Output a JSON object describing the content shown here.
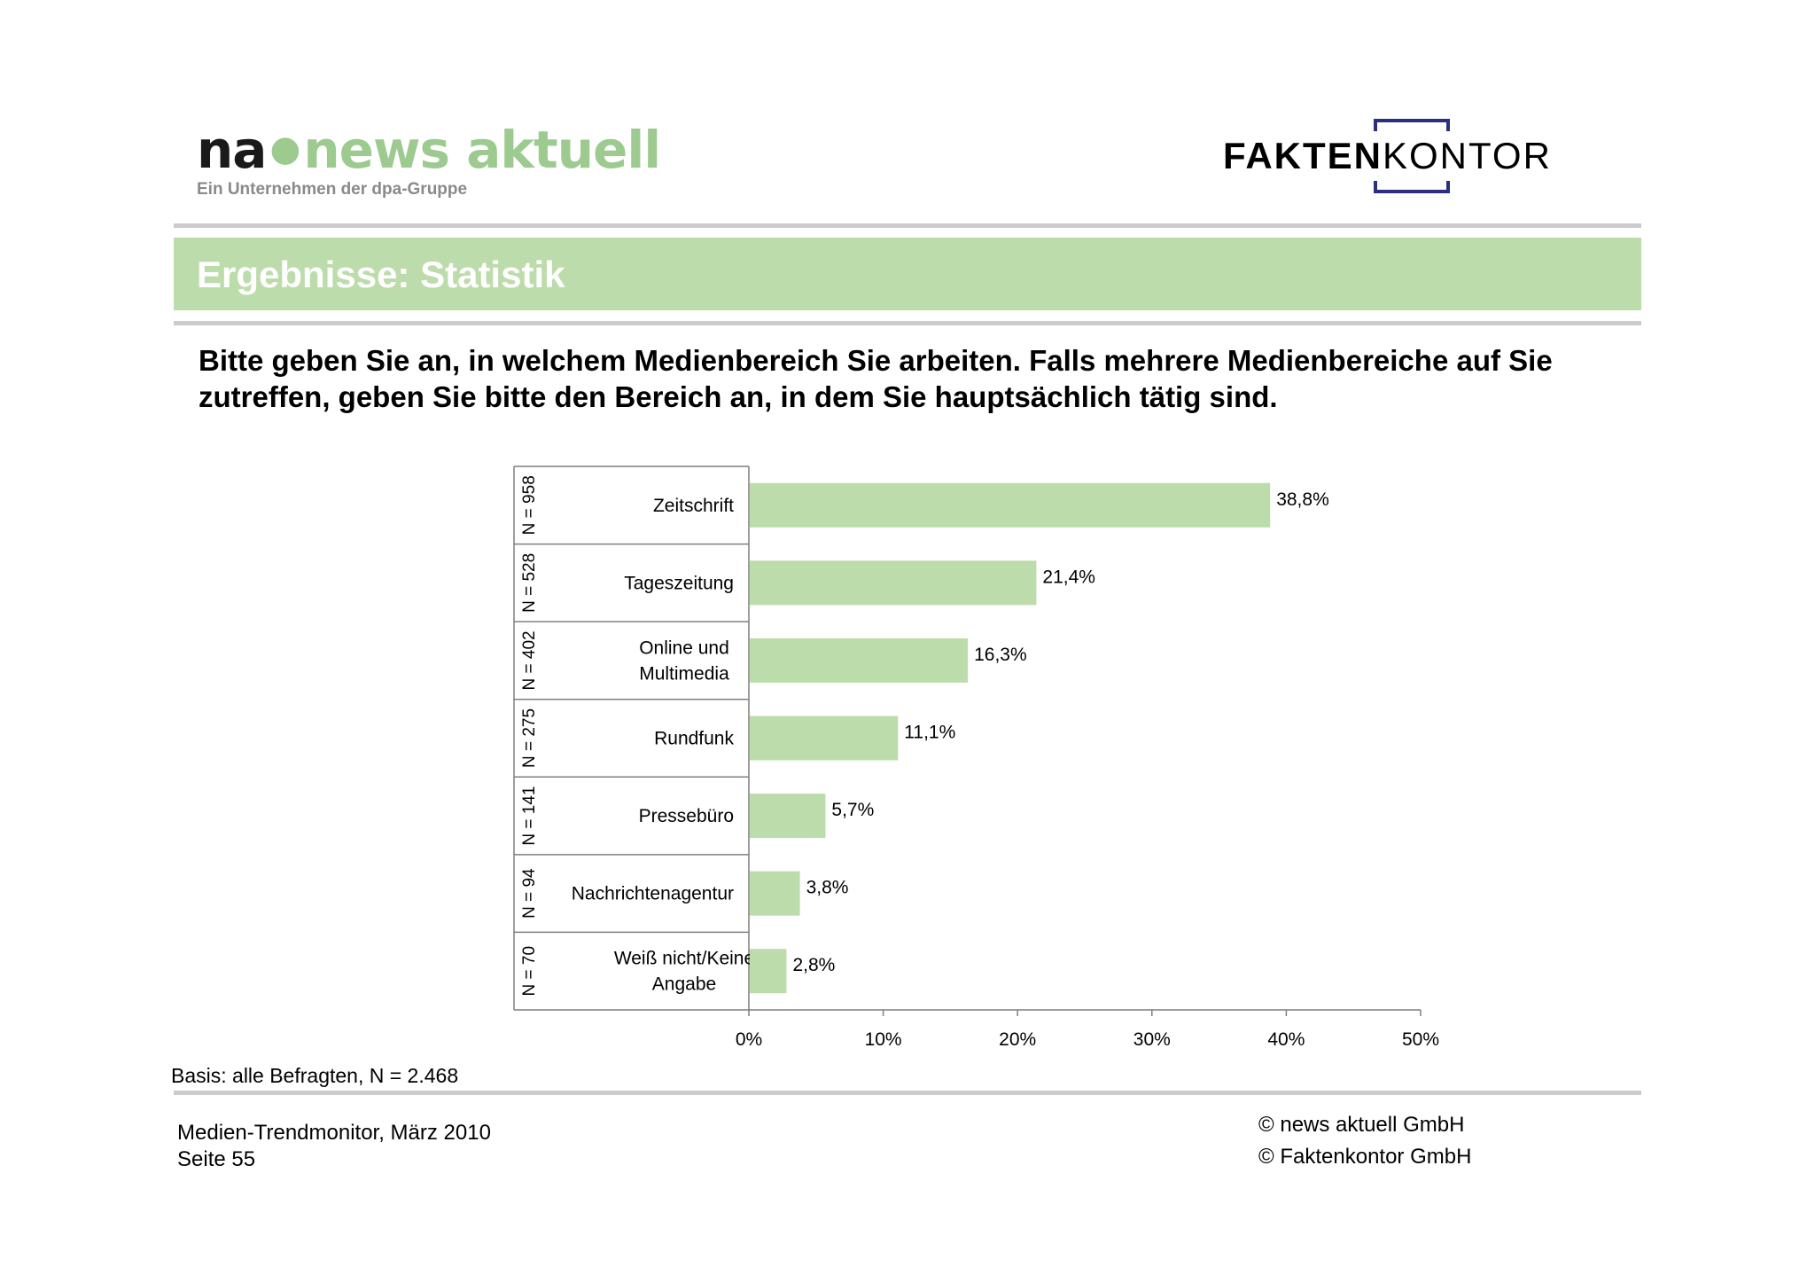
{
  "header": {
    "na_logo_prefix": "na",
    "na_logo_brand": "news aktuell",
    "na_tagline": "Ein Unternehmen der dpa-Gruppe",
    "fk_logo_bold": "FAKTEN",
    "fk_logo_regular": "KONTOR"
  },
  "title": "Ergebnisse: Statistik",
  "question": "Bitte geben Sie an, in welchem Medienbereich Sie arbeiten. Falls mehrere Medienbereiche auf Sie zutreffen, geben Sie bitte den Bereich an, in dem Sie hauptsächlich tätig sind.",
  "colors": {
    "accent_green": "#bddcab",
    "bar_green": "#bddcab",
    "logo_green": "#9dca8f",
    "logo_blue": "#2c2f80",
    "rule_gray": "#cccccc"
  },
  "chart_data": {
    "type": "bar",
    "orientation": "horizontal",
    "categories": [
      {
        "label_lines": [
          "Zeitschrift"
        ],
        "n_label": "N = 958"
      },
      {
        "label_lines": [
          "Tageszeitung"
        ],
        "n_label": "N = 528"
      },
      {
        "label_lines": [
          "Online und",
          "Multimedia"
        ],
        "n_label": "N = 402"
      },
      {
        "label_lines": [
          "Rundfunk"
        ],
        "n_label": "N = 275"
      },
      {
        "label_lines": [
          "Pressebüro"
        ],
        "n_label": "N = 141"
      },
      {
        "label_lines": [
          "Nachrichtenagentur"
        ],
        "n_label": "N = 94"
      },
      {
        "label_lines": [
          "Weiß nicht/Keine",
          "Angabe"
        ],
        "n_label": "N = 70"
      }
    ],
    "values": [
      38.8,
      21.4,
      16.3,
      11.1,
      5.7,
      3.8,
      2.8
    ],
    "value_labels": [
      "38,8%",
      "21,4%",
      "16,3%",
      "11,1%",
      "5,7%",
      "3,8%",
      "2,8%"
    ],
    "xlim": [
      0,
      50
    ],
    "x_ticks": [
      0,
      10,
      20,
      30,
      40,
      50
    ],
    "x_tick_labels": [
      "0%",
      "10%",
      "20%",
      "30%",
      "40%",
      "50%"
    ],
    "grid": false,
    "legend": "none"
  },
  "basis": "Basis: alle Befragten, N = 2.468",
  "footer": {
    "left_line1": "Medien-Trendmonitor, März 2010",
    "left_line2": "Seite 55",
    "right_line1": "© news aktuell GmbH",
    "right_line2": "© Faktenkontor GmbH"
  }
}
